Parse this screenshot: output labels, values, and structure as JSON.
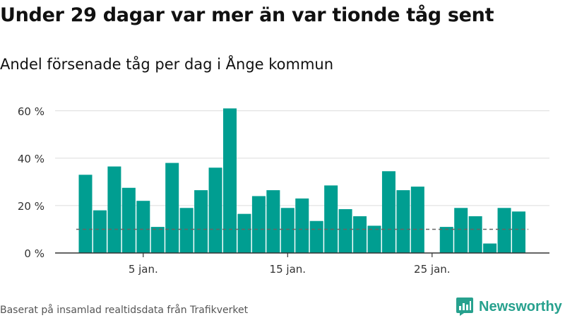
{
  "header": {
    "title": "Under 29 dagar var mer än var tionde tåg sent",
    "subtitle": "Andel försenade tåg per dag i Ånge kommun"
  },
  "footer": {
    "source": "Baserat på insamlad realtidsdata från Trafikverket",
    "brand": "Newsworthy"
  },
  "colors": {
    "bar": "#009e91",
    "grid": "#dcdcdc",
    "axis": "#333333",
    "reference": "#666666",
    "brand": "#27a18e"
  },
  "chart_data": {
    "type": "bar",
    "title": "Andel försenade tåg per dag i Ånge kommun",
    "xlabel": "",
    "ylabel": "",
    "x_unit": "day of January",
    "x": [
      1,
      2,
      3,
      4,
      5,
      6,
      7,
      8,
      9,
      10,
      11,
      12,
      13,
      14,
      15,
      16,
      17,
      18,
      19,
      20,
      21,
      22,
      23,
      24,
      25,
      26,
      27,
      28,
      29,
      30,
      31
    ],
    "values": [
      33,
      18,
      36.5,
      27.5,
      22,
      11,
      38,
      19,
      26.5,
      36,
      61,
      16.5,
      24,
      26.5,
      19,
      23,
      13.5,
      28.5,
      18.5,
      15.5,
      11.5,
      34.5,
      26.5,
      28,
      null,
      11,
      19,
      15.5,
      4,
      19,
      17.5
    ],
    "y_unit": "%",
    "ylim": [
      0,
      65
    ],
    "y_ticks": [
      0,
      20,
      40,
      60
    ],
    "y_tick_labels": [
      "0 %",
      "20 %",
      "40 %",
      "60 %"
    ],
    "x_ticks": [
      5,
      15,
      25
    ],
    "x_tick_labels": [
      "5 jan.",
      "15 jan.",
      "25 jan."
    ],
    "reference_line": 10,
    "grid": true,
    "legend": "none"
  }
}
